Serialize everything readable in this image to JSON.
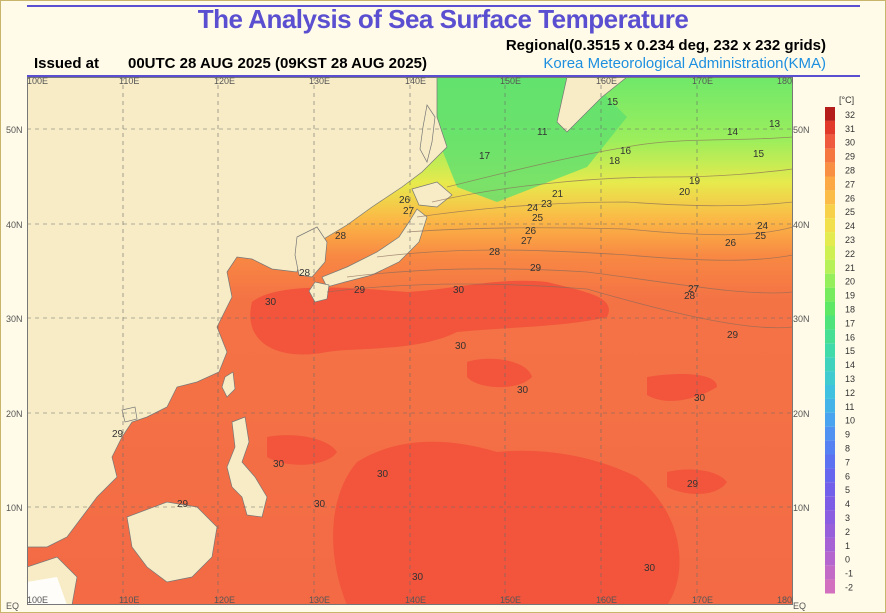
{
  "header": {
    "title": "The Analysis of Sea Surface Temperature",
    "regional": "Regional(0.3515 x 0.234 deg, 232 x 232 grids)",
    "issued_label": "Issued at",
    "issued_time": "00UTC 28 AUG 2025 (09KST 28 AUG 2025)",
    "agency": "Korea Meteorological Administration(KMA)"
  },
  "map": {
    "longitude_labels": [
      "100E",
      "110E",
      "120E",
      "130E",
      "140E",
      "150E",
      "160E",
      "170E",
      "180E"
    ],
    "latitude_labels": [
      "EQ",
      "10N",
      "20N",
      "30N",
      "40N",
      "50N"
    ],
    "contour_labels": [
      "15",
      "11",
      "14",
      "13",
      "15",
      "16",
      "18",
      "17",
      "19",
      "20",
      "21",
      "24",
      "23",
      "25",
      "24",
      "25",
      "26",
      "26",
      "27",
      "28",
      "26",
      "27",
      "28",
      "29",
      "28",
      "27",
      "30",
      "28",
      "29",
      "29",
      "30",
      "30",
      "30",
      "30",
      "30",
      "29",
      "29",
      "30",
      "30",
      "29",
      "30",
      "30"
    ]
  },
  "colorbar": {
    "unit": "[°C]",
    "ticks": [
      "32",
      "31",
      "30",
      "29",
      "28",
      "27",
      "26",
      "25",
      "24",
      "23",
      "22",
      "21",
      "20",
      "19",
      "18",
      "17",
      "16",
      "15",
      "14",
      "13",
      "12",
      "11",
      "10",
      "9",
      "8",
      "7",
      "6",
      "5",
      "4",
      "3",
      "2",
      "1",
      "0",
      "-1",
      "-2"
    ],
    "colors": [
      "#b41d19",
      "#e23a2a",
      "#ef5a3e",
      "#f5763f",
      "#f88f42",
      "#fba845",
      "#fbbd47",
      "#f7d14a",
      "#f1e04c",
      "#e4eb4e",
      "#cff052",
      "#b6f159",
      "#95ee5c",
      "#77eb5e",
      "#5ee866",
      "#4fe47b",
      "#47df93",
      "#41daa9",
      "#3fd3bd",
      "#3fcbd0",
      "#40c1df",
      "#44b3e8",
      "#49a3ef",
      "#4f92f2",
      "#5681f3",
      "#5d72f1",
      "#6766ee",
      "#7260ea",
      "#7d5de6",
      "#8a5de1",
      "#985fdb",
      "#a662d5",
      "#b466ce",
      "#c36ac6",
      "#d26fbe"
    ]
  },
  "legend_colors": {
    "warm": "#f06a45",
    "land": "#f8ecc6"
  }
}
